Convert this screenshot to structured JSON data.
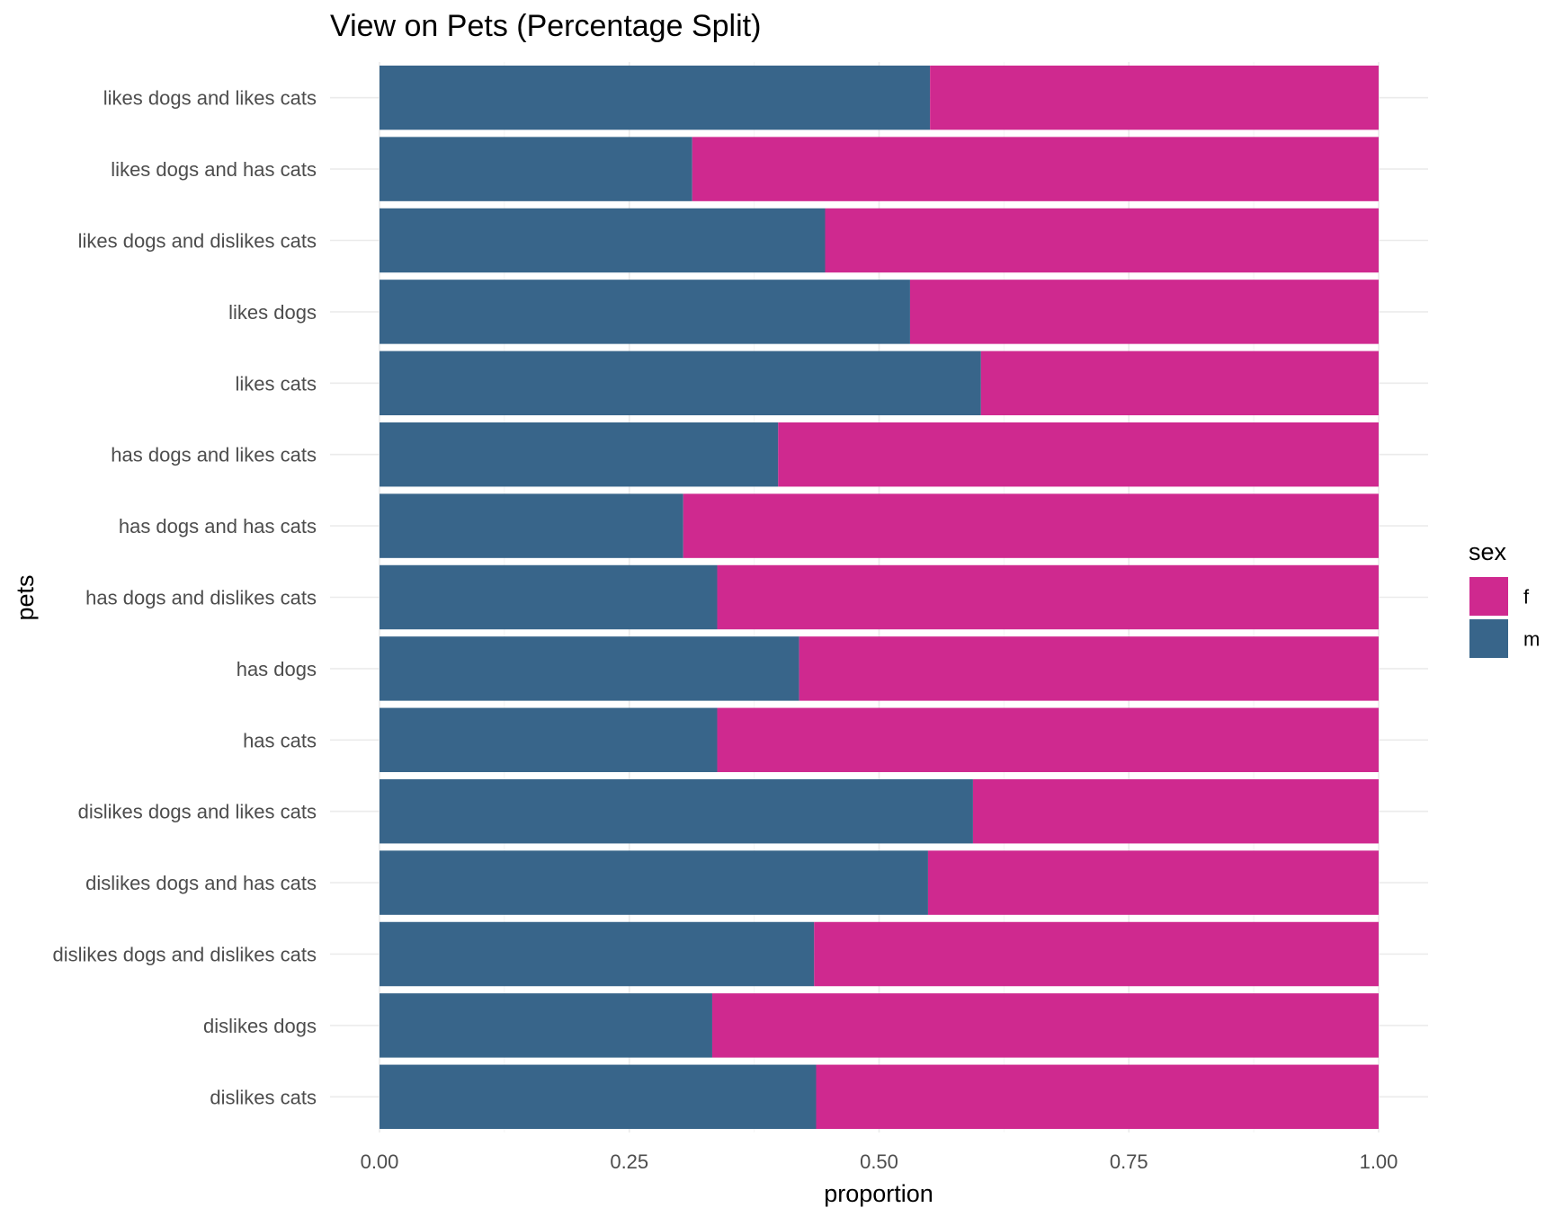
{
  "chart_data": {
    "type": "bar",
    "orientation": "horizontal",
    "stacked": true,
    "title": "View on Pets (Percentage Split)",
    "xlabel": "proportion",
    "ylabel": "pets",
    "xlim": [
      0,
      1
    ],
    "x_ticks": [
      "0.00",
      "0.25",
      "0.50",
      "0.75",
      "1.00"
    ],
    "grid": true,
    "categories": [
      "likes dogs and likes cats",
      "likes dogs and has cats",
      "likes dogs and dislikes cats",
      "likes dogs",
      "likes cats",
      "has dogs and likes cats",
      "has dogs and has cats",
      "has dogs and dislikes cats",
      "has dogs",
      "has cats",
      "dislikes dogs and likes cats",
      "dislikes dogs and has cats",
      "dislikes dogs and dislikes cats",
      "dislikes dogs",
      "dislikes cats"
    ],
    "series": [
      {
        "name": "m",
        "color": "#38658a",
        "values": [
          0.551,
          0.313,
          0.446,
          0.531,
          0.602,
          0.399,
          0.304,
          0.338,
          0.42,
          0.338,
          0.594,
          0.549,
          0.435,
          0.333,
          0.437
        ]
      },
      {
        "name": "f",
        "color": "#cf298f",
        "values": [
          0.449,
          0.687,
          0.554,
          0.469,
          0.398,
          0.601,
          0.696,
          0.662,
          0.58,
          0.662,
          0.406,
          0.451,
          0.565,
          0.667,
          0.563
        ]
      }
    ],
    "legend": {
      "title": "sex",
      "position": "right",
      "entries": [
        {
          "label": "f",
          "color": "#cf298f"
        },
        {
          "label": "m",
          "color": "#38658a"
        }
      ]
    }
  }
}
